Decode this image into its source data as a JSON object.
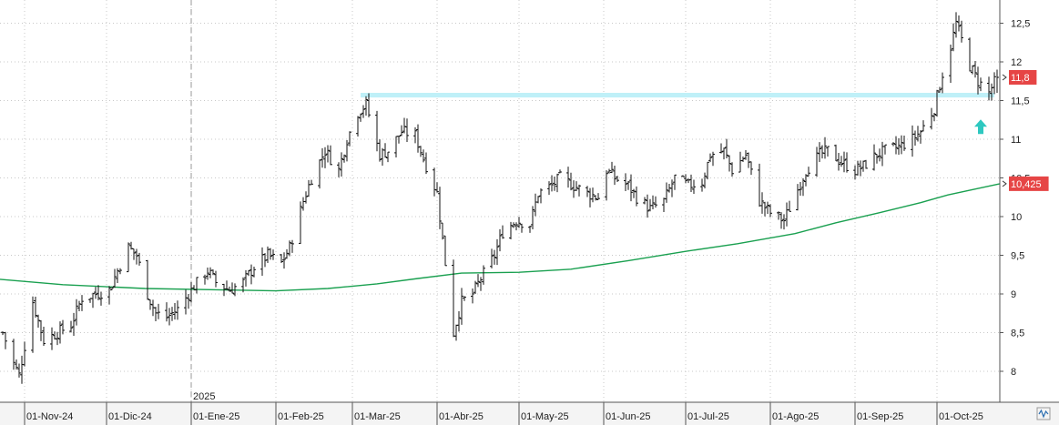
{
  "chart_data": {
    "type": "ohlc-bar",
    "y_axis": {
      "range": [
        7.6,
        12.8
      ],
      "ticks": [
        "8",
        "8,5",
        "9",
        "9,5",
        "10",
        "10,5",
        "11",
        "11,5",
        "12",
        "12,5"
      ],
      "tick_values": [
        8,
        8.5,
        9,
        9.5,
        10,
        10.5,
        11,
        11.5,
        12,
        12.5
      ],
      "position": "right"
    },
    "x_axis": {
      "tick_labels": [
        "01-Nov-24",
        "01-Dic-24",
        "01-Ene-25",
        "01-Feb-25",
        "01-Mar-25",
        "01-Abr-25",
        "01-May-25",
        "01-Jun-25",
        "01-Jul-25",
        "01-Ago-25",
        "01-Sep-25",
        "01-Oct-25"
      ],
      "tick_dates": [
        "2024-11-01",
        "2024-12-01",
        "2025-01-01",
        "2025-02-01",
        "2025-03-01",
        "2025-04-01",
        "2025-05-01",
        "2025-06-01",
        "2025-07-01",
        "2025-08-01",
        "2025-09-01",
        "2025-10-01"
      ],
      "range": [
        "2024-10-23",
        "2025-10-24"
      ],
      "year_marker": {
        "label": "2025",
        "date": "2025-01-01"
      }
    },
    "grid": "dotted",
    "price_close_approx": [
      [
        "2024-10-24",
        8.5
      ],
      [
        "2024-10-28",
        8.1
      ],
      [
        "2024-10-30",
        7.95
      ],
      [
        "2024-11-04",
        8.9
      ],
      [
        "2024-11-08",
        8.4
      ],
      [
        "2024-11-13",
        8.5
      ],
      [
        "2024-11-18",
        8.6
      ],
      [
        "2024-11-22",
        8.95
      ],
      [
        "2024-11-27",
        9.0
      ],
      [
        "2024-12-02",
        9.05
      ],
      [
        "2024-12-05",
        9.3
      ],
      [
        "2024-12-09",
        9.6
      ],
      [
        "2024-12-12",
        9.5
      ],
      [
        "2024-12-16",
        9.0
      ],
      [
        "2024-12-19",
        8.75
      ],
      [
        "2024-12-23",
        8.7
      ],
      [
        "2024-12-27",
        8.8
      ],
      [
        "2025-01-02",
        9.1
      ],
      [
        "2025-01-07",
        9.3
      ],
      [
        "2025-01-10",
        9.15
      ],
      [
        "2025-01-15",
        9.05
      ],
      [
        "2025-01-20",
        9.15
      ],
      [
        "2025-01-24",
        9.35
      ],
      [
        "2025-01-29",
        9.5
      ],
      [
        "2025-02-03",
        9.4
      ],
      [
        "2025-02-06",
        9.6
      ],
      [
        "2025-02-11",
        10.2
      ],
      [
        "2025-02-14",
        10.5
      ],
      [
        "2025-02-19",
        10.85
      ],
      [
        "2025-02-24",
        10.6
      ],
      [
        "2025-02-27",
        11.0
      ],
      [
        "2025-03-03",
        11.35
      ],
      [
        "2025-03-06",
        11.45
      ],
      [
        "2025-03-11",
        10.8
      ],
      [
        "2025-03-14",
        10.85
      ],
      [
        "2025-03-19",
        11.1
      ],
      [
        "2025-03-24",
        11.05
      ],
      [
        "2025-03-27",
        10.75
      ],
      [
        "2025-04-01",
        10.3
      ],
      [
        "2025-04-04",
        9.4
      ],
      [
        "2025-04-07",
        8.5
      ],
      [
        "2025-04-10",
        8.9
      ],
      [
        "2025-04-14",
        9.0
      ],
      [
        "2025-04-17",
        9.2
      ],
      [
        "2025-04-22",
        9.5
      ],
      [
        "2025-04-25",
        9.8
      ],
      [
        "2025-04-30",
        9.95
      ],
      [
        "2025-05-05",
        9.9
      ],
      [
        "2025-05-08",
        10.3
      ],
      [
        "2025-05-13",
        10.4
      ],
      [
        "2025-05-16",
        10.5
      ],
      [
        "2025-05-21",
        10.4
      ],
      [
        "2025-05-26",
        10.3
      ],
      [
        "2025-05-30",
        10.25
      ],
      [
        "2025-06-02",
        10.6
      ],
      [
        "2025-06-05",
        10.5
      ],
      [
        "2025-06-10",
        10.4
      ],
      [
        "2025-06-13",
        10.25
      ],
      [
        "2025-06-18",
        10.1
      ],
      [
        "2025-06-23",
        10.2
      ],
      [
        "2025-06-27",
        10.5
      ],
      [
        "2025-07-02",
        10.4
      ],
      [
        "2025-07-07",
        10.45
      ],
      [
        "2025-07-10",
        10.8
      ],
      [
        "2025-07-15",
        10.85
      ],
      [
        "2025-07-18",
        10.6
      ],
      [
        "2025-07-23",
        10.8
      ],
      [
        "2025-07-28",
        10.2
      ],
      [
        "2025-08-01",
        10.05
      ],
      [
        "2025-08-06",
        9.95
      ],
      [
        "2025-08-11",
        10.35
      ],
      [
        "2025-08-14",
        10.6
      ],
      [
        "2025-08-19",
        10.8
      ],
      [
        "2025-08-22",
        10.85
      ],
      [
        "2025-08-27",
        10.7
      ],
      [
        "2025-09-01",
        10.6
      ],
      [
        "2025-09-04",
        10.65
      ],
      [
        "2025-09-09",
        10.8
      ],
      [
        "2025-09-12",
        10.85
      ],
      [
        "2025-09-17",
        10.9
      ],
      [
        "2025-09-22",
        11.0
      ],
      [
        "2025-09-25",
        11.1
      ],
      [
        "2025-09-30",
        11.4
      ],
      [
        "2025-10-03",
        11.85
      ],
      [
        "2025-10-06",
        12.2
      ],
      [
        "2025-10-08",
        12.5
      ],
      [
        "2025-10-13",
        11.95
      ],
      [
        "2025-10-16",
        11.75
      ],
      [
        "2025-10-20",
        11.6
      ],
      [
        "2025-10-23",
        11.8
      ]
    ],
    "moving_average": {
      "color": "#1aa050",
      "points": [
        [
          "2024-10-23",
          9.19
        ],
        [
          "2024-11-15",
          9.12
        ],
        [
          "2024-12-15",
          9.07
        ],
        [
          "2025-01-15",
          9.05
        ],
        [
          "2025-02-01",
          9.04
        ],
        [
          "2025-02-20",
          9.07
        ],
        [
          "2025-03-10",
          9.13
        ],
        [
          "2025-03-25",
          9.2
        ],
        [
          "2025-04-10",
          9.27
        ],
        [
          "2025-05-01",
          9.28
        ],
        [
          "2025-05-20",
          9.32
        ],
        [
          "2025-06-10",
          9.43
        ],
        [
          "2025-07-01",
          9.55
        ],
        [
          "2025-07-20",
          9.65
        ],
        [
          "2025-08-10",
          9.78
        ],
        [
          "2025-08-25",
          9.92
        ],
        [
          "2025-09-10",
          10.05
        ],
        [
          "2025-09-25",
          10.18
        ],
        [
          "2025-10-05",
          10.28
        ],
        [
          "2025-10-24",
          10.425
        ]
      ]
    },
    "resistance_band": {
      "color": "#bff0f8",
      "from": "2025-03-04",
      "to": "2025-10-22",
      "y_low": 11.54,
      "y_high": 11.6
    },
    "arrow_marker": {
      "direction": "up",
      "date": "2025-10-17",
      "y": 11.15,
      "color": "#2ec8c0"
    }
  },
  "badges": [
    {
      "label": "11,8",
      "value": 11.8,
      "color": "#e64545"
    },
    {
      "label": "10,425",
      "value": 10.425,
      "color": "#e64545"
    }
  ],
  "corner_icon": {
    "name": "waveform-icon"
  }
}
